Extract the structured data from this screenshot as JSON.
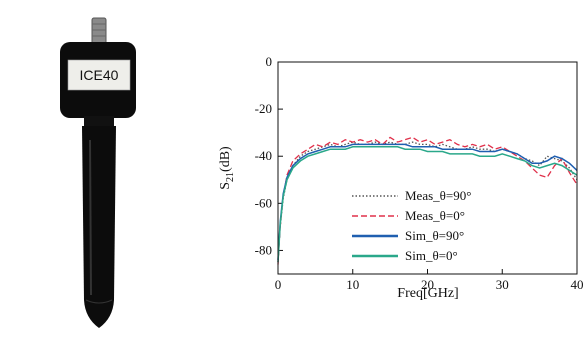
{
  "probe": {
    "label": "ICE40",
    "colors": {
      "body": "#0c0c0c",
      "label_bg": "#eeeeea",
      "connector": "#8a8a8a"
    }
  },
  "chart_data": {
    "type": "line",
    "xlabel": "Freq[GHz]",
    "ylabel_main": "S",
    "ylabel_sub": "21",
    "ylabel_unit": "(dB)",
    "xlim": [
      0,
      40
    ],
    "ylim": [
      -90,
      0
    ],
    "xticks": [
      0,
      10,
      20,
      30,
      40
    ],
    "yticks": [
      0,
      -20,
      -40,
      -60,
      -80
    ],
    "grid": false,
    "legend_position": "lower-middle",
    "series": [
      {
        "name": "Meas_θ=90°",
        "color": "#555555",
        "style": "dotted",
        "x": [
          0,
          0.3,
          0.7,
          1.2,
          2,
          3,
          4,
          5,
          6,
          7,
          8,
          9,
          10,
          11,
          12,
          13,
          14,
          15,
          16,
          17,
          18,
          19,
          20,
          21,
          22,
          23,
          24,
          25,
          26,
          27,
          28,
          29,
          30,
          31,
          32,
          33,
          34,
          35,
          36,
          37,
          38,
          39,
          40
        ],
        "y": [
          -85,
          -70,
          -58,
          -50,
          -44,
          -40,
          -38,
          -37,
          -36,
          -35,
          -36,
          -35,
          -34,
          -35,
          -35,
          -34,
          -35,
          -34,
          -35,
          -35,
          -34,
          -35,
          -35,
          -36,
          -35,
          -36,
          -37,
          -37,
          -36,
          -37,
          -37,
          -38,
          -37,
          -38,
          -39,
          -41,
          -42,
          -44,
          -40,
          -41,
          -42,
          -45,
          -50
        ]
      },
      {
        "name": "Meas_θ=0°",
        "color": "#e0304a",
        "style": "dashed",
        "x": [
          0,
          0.3,
          0.7,
          1.2,
          2,
          3,
          4,
          5,
          6,
          7,
          8,
          9,
          10,
          11,
          12,
          13,
          14,
          15,
          16,
          17,
          18,
          19,
          20,
          21,
          22,
          23,
          24,
          25,
          26,
          27,
          28,
          29,
          30,
          31,
          32,
          33,
          34,
          35,
          36,
          37,
          38,
          39,
          40
        ],
        "y": [
          -86,
          -70,
          -57,
          -48,
          -42,
          -39,
          -37,
          -35,
          -36,
          -34,
          -35,
          -33,
          -34,
          -33,
          -34,
          -33,
          -35,
          -32,
          -34,
          -33,
          -32,
          -34,
          -33,
          -35,
          -34,
          -33,
          -35,
          -36,
          -35,
          -36,
          -35,
          -37,
          -36,
          -38,
          -40,
          -42,
          -45,
          -48,
          -49,
          -44,
          -41,
          -47,
          -52
        ]
      },
      {
        "name": "Sim_θ=90°",
        "color": "#1f5fb0",
        "style": "solid",
        "x": [
          0,
          0.3,
          0.7,
          1.2,
          2,
          3,
          4,
          5,
          6,
          7,
          8,
          9,
          10,
          11,
          12,
          13,
          14,
          15,
          16,
          17,
          18,
          19,
          20,
          21,
          22,
          23,
          24,
          25,
          26,
          27,
          28,
          29,
          30,
          31,
          32,
          33,
          34,
          35,
          36,
          37,
          38,
          39,
          40
        ],
        "y": [
          -84,
          -68,
          -56,
          -49,
          -44,
          -41,
          -39,
          -38,
          -37,
          -36,
          -36,
          -36,
          -35,
          -35,
          -35,
          -35,
          -35,
          -35,
          -35,
          -35,
          -36,
          -36,
          -36,
          -36,
          -37,
          -37,
          -37,
          -37,
          -37,
          -38,
          -38,
          -38,
          -37,
          -38,
          -39,
          -41,
          -43,
          -43,
          -42,
          -40,
          -41,
          -43,
          -46
        ]
      },
      {
        "name": "Sim_θ=0°",
        "color": "#2aa88a",
        "style": "solid",
        "x": [
          0,
          0.3,
          0.7,
          1.2,
          2,
          3,
          4,
          5,
          6,
          7,
          8,
          9,
          10,
          11,
          12,
          13,
          14,
          15,
          16,
          17,
          18,
          19,
          20,
          21,
          22,
          23,
          24,
          25,
          26,
          27,
          28,
          29,
          30,
          31,
          32,
          33,
          34,
          35,
          36,
          37,
          38,
          39,
          40
        ],
        "y": [
          -85,
          -69,
          -57,
          -50,
          -45,
          -42,
          -40,
          -39,
          -38,
          -37,
          -37,
          -37,
          -36,
          -36,
          -36,
          -36,
          -36,
          -36,
          -36,
          -37,
          -37,
          -37,
          -38,
          -38,
          -38,
          -39,
          -39,
          -39,
          -39,
          -40,
          -40,
          -40,
          -39,
          -40,
          -41,
          -42,
          -44,
          -45,
          -44,
          -43,
          -44,
          -46,
          -48
        ]
      }
    ]
  }
}
